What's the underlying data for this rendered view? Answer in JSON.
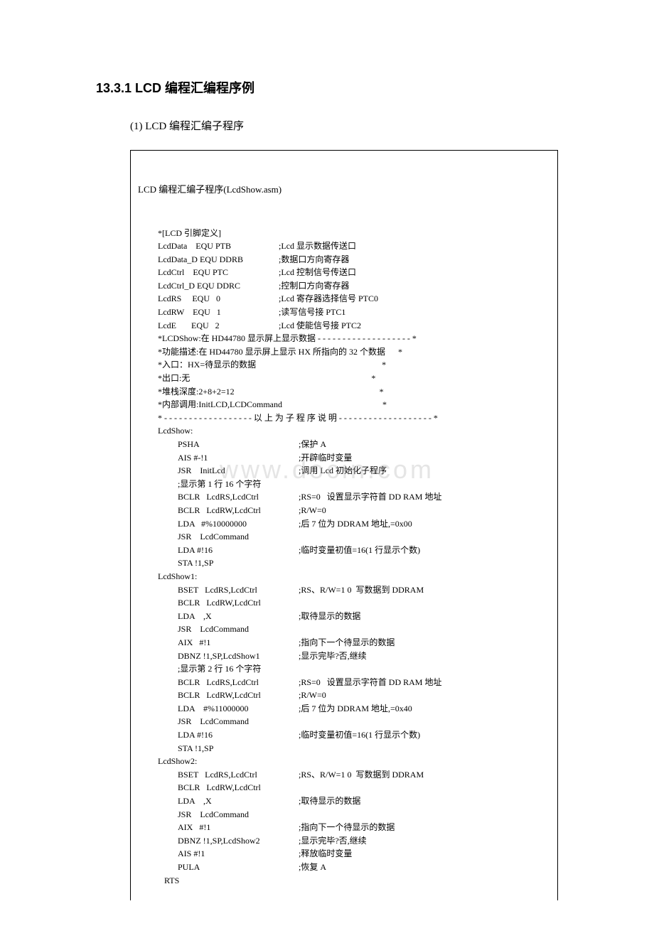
{
  "watermark": "www.docin.com",
  "section_title": "13.3.1 LCD 编程汇编程序例",
  "sub_title": "(1) LCD 编程汇编子程序",
  "file_title": "LCD 编程汇编子程序(LcdShow.asm)",
  "code": [
    {
      "ind": "a",
      "l": "*[LCD 引脚定义]",
      "r": ""
    },
    {
      "ind": "a",
      "l": "LcdData    EQU PTB",
      "r": ";Lcd 显示数据传送口"
    },
    {
      "ind": "a",
      "l": "LcdData_D EQU DDRB",
      "r": ";数据口方向寄存器"
    },
    {
      "ind": "a",
      "l": "LcdCtrl    EQU PTC",
      "r": ";Lcd 控制信号传送口"
    },
    {
      "ind": "a",
      "l": "LcdCtrl_D EQU DDRC",
      "r": ";控制口方向寄存器"
    },
    {
      "ind": "a",
      "l": "LcdRS     EQU   0",
      "r": ";Lcd 寄存器选择信号 PTC0"
    },
    {
      "ind": "a",
      "l": "LcdRW    EQU   1",
      "r": ";读写信号接 PTC1"
    },
    {
      "ind": "a",
      "l": "LcdE       EQU   2",
      "r": ";Lcd 使能信号接 PTC2"
    },
    {
      "ind": "a",
      "full": "*LCDShow:在 HD44780 显示屏上显示数据 - - - - - - - - - - - - - - - - - - - *"
    },
    {
      "ind": "a",
      "full": "*功能描述:在 HD44780 显示屏上显示 HX 所指向的 32 个数据      *"
    },
    {
      "ind": "a",
      "full": "*入口：HX=待显示的数据                                                           *"
    },
    {
      "ind": "a",
      "full": "*出口:无                                                                                     *"
    },
    {
      "ind": "a",
      "full": "*堆栈深度:2+8+2=12                                                                    *"
    },
    {
      "ind": "a",
      "full": "*内部调用:InitLCD,LCDCommand                                               *"
    },
    {
      "ind": "a",
      "full": "* - - - - - - - - - - - - - - - - - - 以 上 为 子 程 序 说 明 - - - - - - - - - - - - - - - - - - - *"
    },
    {
      "ind": "a",
      "full": "LcdShow:"
    },
    {
      "ind": "b",
      "l": "PSHA",
      "r": ";保护 A"
    },
    {
      "ind": "b",
      "l": "AIS #-!1",
      "r": ";开辟临时变量"
    },
    {
      "ind": "b",
      "l": "JSR    InitLcd",
      "r": ";调用 Lcd 初始化子程序"
    },
    {
      "ind": "b",
      "full": ";显示第 1 行 16 个字符"
    },
    {
      "ind": "b",
      "l": "BCLR   LcdRS,LcdCtrl",
      "r": ";RS=0   设置显示字符首 DD RAM 地址"
    },
    {
      "ind": "b",
      "l": "BCLR   LcdRW,LcdCtrl",
      "r": ";R/W=0"
    },
    {
      "ind": "b",
      "l": "LDA   #%10000000",
      "r": ";后 7 位为 DDRAM 地址,=0x00"
    },
    {
      "ind": "b",
      "full": "JSR    LcdCommand"
    },
    {
      "ind": "b",
      "l": "LDA #!16",
      "r": ";临时变量初值=16(1 行显示个数)"
    },
    {
      "ind": "b",
      "full": "STA !1,SP"
    },
    {
      "ind": "a",
      "full": "LcdShow1:"
    },
    {
      "ind": "b",
      "l": "BSET   LcdRS,LcdCtrl",
      "r": ";RS、R/W=1 0  写数据到 DDRAM"
    },
    {
      "ind": "b",
      "full": "BCLR   LcdRW,LcdCtrl"
    },
    {
      "ind": "b",
      "l": "LDA    ,X",
      "r": ";取待显示的数据"
    },
    {
      "ind": "b",
      "full": "JSR    LcdCommand"
    },
    {
      "ind": "b",
      "l": "AIX   #!1",
      "r": ";指向下一个待显示的数据"
    },
    {
      "ind": "b",
      "l": "DBNZ !1,SP,LcdShow1",
      "r": ";显示完毕?否,继续"
    },
    {
      "ind": "b",
      "full": ";显示第 2 行 16 个字符"
    },
    {
      "ind": "b",
      "l": "BCLR   LcdRS,LcdCtrl",
      "r": ";RS=0   设置显示字符首 DD RAM 地址"
    },
    {
      "ind": "b",
      "l": "BCLR   LcdRW,LcdCtrl",
      "r": ";R/W=0"
    },
    {
      "ind": "b",
      "l": "LDA    #%11000000",
      "r": ";后 7 位为 DDRAM 地址,=0x40"
    },
    {
      "ind": "b",
      "full": "JSR    LcdCommand"
    },
    {
      "ind": "b",
      "l": "LDA #!16",
      "r": ";临时变量初值=16(1 行显示个数)"
    },
    {
      "ind": "b",
      "full": "STA !1,SP"
    },
    {
      "ind": "a",
      "full": "LcdShow2:"
    },
    {
      "ind": "b",
      "l": "BSET   LcdRS,LcdCtrl",
      "r": ";RS、R/W=1 0  写数据到 DDRAM"
    },
    {
      "ind": "b",
      "full": "BCLR   LcdRW,LcdCtrl"
    },
    {
      "ind": "b",
      "l": "LDA    ,X",
      "r": ";取待显示的数据"
    },
    {
      "ind": "b",
      "full": "JSR    LcdCommand"
    },
    {
      "ind": "b",
      "l": "AIX   #!1",
      "r": ";指向下一个待显示的数据"
    },
    {
      "ind": "b",
      "l": "DBNZ !1,SP,LcdShow2",
      "r": ";显示完毕?否,继续"
    },
    {
      "ind": "b",
      "l": "AIS #!1",
      "r": ";释放临时变量"
    },
    {
      "ind": "b",
      "l": "PULA",
      "r": ";恢复 A"
    },
    {
      "ind": "a",
      "full": "   RTS"
    }
  ]
}
